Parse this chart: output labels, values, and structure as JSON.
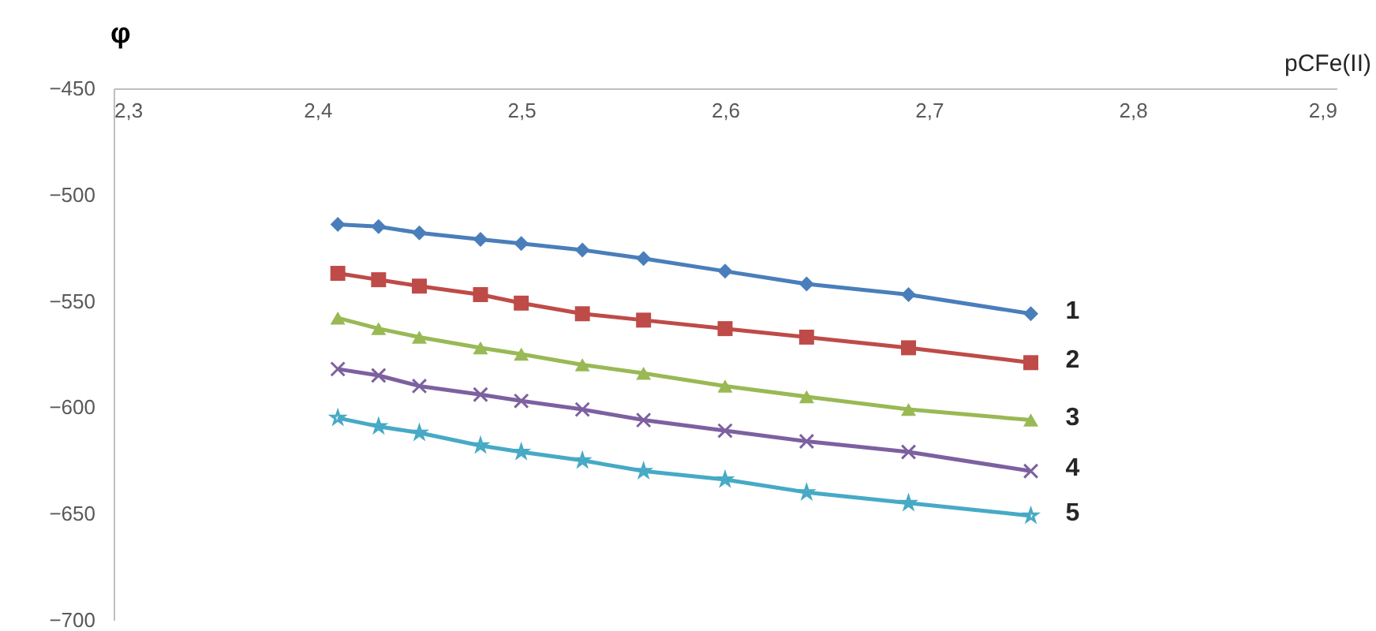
{
  "chart_data": {
    "type": "line",
    "xlabel": "pCFe(II)",
    "ylabel": "φ",
    "x": [
      2.41,
      2.43,
      2.45,
      2.48,
      2.5,
      2.53,
      2.56,
      2.6,
      2.64,
      2.69,
      2.75
    ],
    "xlim": [
      2.3,
      2.9
    ],
    "xticks": [
      {
        "value": 2.3,
        "label": "2,3"
      },
      {
        "value": 2.4,
        "label": "2,4"
      },
      {
        "value": 2.5,
        "label": "2,5"
      },
      {
        "value": 2.6,
        "label": "2,6"
      },
      {
        "value": 2.7,
        "label": "2,7"
      },
      {
        "value": 2.8,
        "label": "2,8"
      },
      {
        "value": 2.9,
        "label": "2,9"
      }
    ],
    "ylim": [
      -700,
      -450
    ],
    "yticks": [
      -700,
      -650,
      -600,
      -550,
      -500,
      -450
    ],
    "grid": false,
    "line_style": "solid",
    "series": [
      {
        "name": "1",
        "color": "#4a7ebb",
        "marker": "diamond",
        "values": [
          -514,
          -515,
          -518,
          -521,
          -523,
          -526,
          -530,
          -536,
          -542,
          -547,
          -556
        ]
      },
      {
        "name": "2",
        "color": "#be4b48",
        "marker": "square",
        "values": [
          -537,
          -540,
          -543,
          -547,
          -551,
          -556,
          -559,
          -563,
          -567,
          -572,
          -579
        ]
      },
      {
        "name": "3",
        "color": "#98b954",
        "marker": "triangle",
        "values": [
          -558,
          -563,
          -567,
          -572,
          -575,
          -580,
          -584,
          -590,
          -595,
          -601,
          -606
        ]
      },
      {
        "name": "4",
        "color": "#7d60a0",
        "marker": "cross",
        "values": [
          -582,
          -585,
          -590,
          -594,
          -597,
          -601,
          -606,
          -611,
          -616,
          -621,
          -630
        ]
      },
      {
        "name": "5",
        "color": "#46aac5",
        "marker": "star",
        "values": [
          -605,
          -609,
          -612,
          -618,
          -621,
          -625,
          -630,
          -634,
          -640,
          -645,
          -651
        ]
      }
    ]
  }
}
